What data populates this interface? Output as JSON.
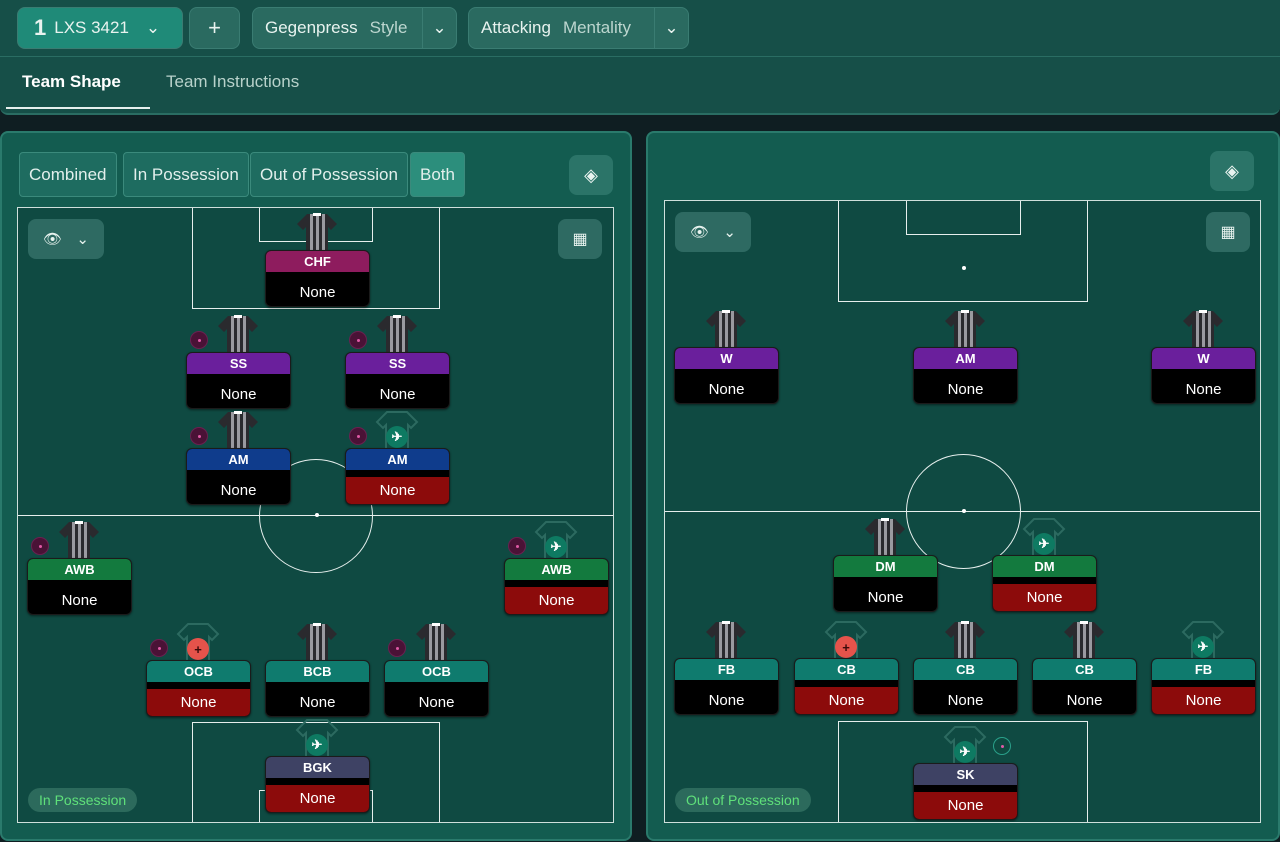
{
  "topbar": {
    "tactic_number": "1",
    "tactic_name": "LXS 3421",
    "add_label": "+",
    "style_value": "Gegenpress",
    "style_label": "Style",
    "mentality_value": "Attacking",
    "mentality_label": "Mentality"
  },
  "tabs": [
    {
      "label": "Team Shape",
      "active": true
    },
    {
      "label": "Team Instructions",
      "active": false
    }
  ],
  "view_modes": [
    {
      "label": "Combined"
    },
    {
      "label": "In Possession"
    },
    {
      "label": "Out of Possession"
    },
    {
      "label": "Both",
      "active": true
    }
  ],
  "left_pitch": {
    "badge": "In Possession",
    "players": [
      {
        "role": "CHF",
        "name": "None",
        "color": "#8e1c5e",
        "red": false,
        "shirt": "striped"
      },
      {
        "role": "SS",
        "name": "None",
        "color": "#6a1f9c",
        "red": false,
        "shirt": "striped",
        "ball": true
      },
      {
        "role": "SS",
        "name": "None",
        "color": "#6a1f9c",
        "red": false,
        "shirt": "striped",
        "ball": true
      },
      {
        "role": "AM",
        "name": "None",
        "color": "#0f3c8c",
        "red": false,
        "shirt": "striped",
        "ball": true
      },
      {
        "role": "AM",
        "name": "None",
        "color": "#0f3c8c",
        "red": true,
        "shirt": "plane",
        "ball": true
      },
      {
        "role": "AWB",
        "name": "None",
        "color": "#137a3e",
        "red": false,
        "shirt": "striped",
        "ball": true
      },
      {
        "role": "AWB",
        "name": "None",
        "color": "#137a3e",
        "red": true,
        "shirt": "plane",
        "ball": true
      },
      {
        "role": "OCB",
        "name": "None",
        "color": "#0f7b6e",
        "red": true,
        "shirt": "plus",
        "ball": true
      },
      {
        "role": "BCB",
        "name": "None",
        "color": "#0f7b6e",
        "red": false,
        "shirt": "striped"
      },
      {
        "role": "OCB",
        "name": "None",
        "color": "#0f7b6e",
        "red": false,
        "shirt": "striped",
        "ball": true
      },
      {
        "role": "BGK",
        "name": "None",
        "color": "#3e4264",
        "red": true,
        "shirt": "plane"
      }
    ]
  },
  "right_pitch": {
    "badge": "Out of Possession",
    "players": [
      {
        "role": "W",
        "name": "None",
        "color": "#6a1f9c",
        "red": false,
        "shirt": "striped"
      },
      {
        "role": "AM",
        "name": "None",
        "color": "#6a1f9c",
        "red": false,
        "shirt": "striped"
      },
      {
        "role": "W",
        "name": "None",
        "color": "#6a1f9c",
        "red": false,
        "shirt": "striped"
      },
      {
        "role": "DM",
        "name": "None",
        "color": "#137a3e",
        "red": false,
        "shirt": "striped"
      },
      {
        "role": "DM",
        "name": "None",
        "color": "#137a3e",
        "red": true,
        "shirt": "plane"
      },
      {
        "role": "FB",
        "name": "None",
        "color": "#0f7b6e",
        "red": false,
        "shirt": "striped"
      },
      {
        "role": "CB",
        "name": "None",
        "color": "#0f7b6e",
        "red": true,
        "shirt": "plus"
      },
      {
        "role": "CB",
        "name": "None",
        "color": "#0f7b6e",
        "red": false,
        "shirt": "striped"
      },
      {
        "role": "CB",
        "name": "None",
        "color": "#0f7b6e",
        "red": false,
        "shirt": "striped"
      },
      {
        "role": "FB",
        "name": "None",
        "color": "#0f7b6e",
        "red": true,
        "shirt": "plane"
      },
      {
        "role": "SK",
        "name": "None",
        "color": "#3e4264",
        "red": true,
        "shirt": "plane",
        "extra_icon": true
      }
    ]
  }
}
